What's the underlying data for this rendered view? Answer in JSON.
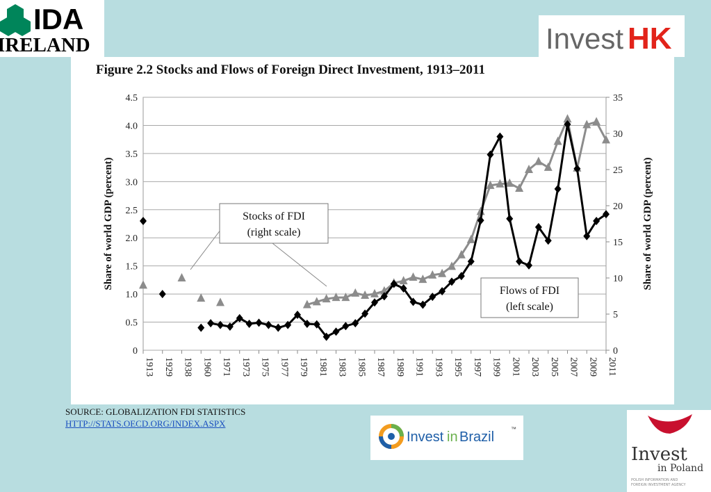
{
  "logos": {
    "ida": {
      "line1": "IDA",
      "line2": "IRELAND"
    },
    "investhk": {
      "part1": "Invest",
      "part2": "HK"
    },
    "brazil": {
      "part1": "Invest",
      "part2": "in",
      "part3": "Brazil",
      "tm": "™"
    },
    "poland": {
      "line1": "Invest",
      "line2": "in Poland",
      "line3": "POLISH INFORMATION AND",
      "line4": "FOREIGN INVESTMENT AGENCY"
    }
  },
  "source": {
    "text": "SOURCE: GLOBALIZATION FDI STATISTICS",
    "link": "HTTP://STATS.OECD.ORG/INDEX.ASPX"
  },
  "colors": {
    "background": "#b8dde0",
    "flows": "#000000",
    "stocks": "#8c8c8c",
    "ida_green": "#00855a",
    "hk_red": "#e2231a",
    "brazil_blue": "#1f5fa8",
    "poland_red": "#c8102e"
  },
  "chart_data": {
    "type": "line",
    "title": "Figure 2.2 Stocks and Flows of Foreign Direct Investment, 1913–2011",
    "ylabel": "Share of world GDP (percent)",
    "y2label": "Share of world GDP (percent)",
    "ylim": [
      0,
      4.5
    ],
    "y2lim": [
      0,
      35
    ],
    "yticks": [
      "0",
      "0.5",
      "1.0",
      "1.5",
      "2.0",
      "2.5",
      "3.0",
      "3.5",
      "4.0",
      "4.5"
    ],
    "y2ticks": [
      "0",
      "5",
      "10",
      "15",
      "20",
      "25",
      "30",
      "35"
    ],
    "x_tick_labels": [
      "1913",
      "1929",
      "1938",
      "1960",
      "1971",
      "1973",
      "1975",
      "1977",
      "1979",
      "1981",
      "1983",
      "1985",
      "1987",
      "1989",
      "1991",
      "1993",
      "1995",
      "1997",
      "1999",
      "2001",
      "2003",
      "2005",
      "2007",
      "2009",
      "2011"
    ],
    "grid": true,
    "series": [
      {
        "name": "Flows of FDI (left scale)",
        "axis": "left",
        "x": [
          "1913",
          "1929",
          "1960",
          "1970",
          "1971",
          "1972",
          "1973",
          "1974",
          "1975",
          "1976",
          "1977",
          "1978",
          "1979",
          "1980",
          "1981",
          "1982",
          "1983",
          "1984",
          "1985",
          "1986",
          "1987",
          "1988",
          "1989",
          "1990",
          "1991",
          "1992",
          "1993",
          "1994",
          "1995",
          "1996",
          "1997",
          "1998",
          "1999",
          "2000",
          "2001",
          "2002",
          "2003",
          "2004",
          "2005",
          "2006",
          "2007",
          "2008",
          "2009",
          "2010",
          "2011"
        ],
        "values": [
          2.3,
          1.0,
          0.4,
          0.48,
          0.45,
          0.42,
          0.57,
          0.47,
          0.49,
          0.45,
          0.4,
          0.45,
          0.63,
          0.47,
          0.46,
          0.24,
          0.33,
          0.43,
          0.48,
          0.65,
          0.85,
          0.96,
          1.18,
          1.1,
          0.86,
          0.81,
          0.95,
          1.05,
          1.22,
          1.32,
          1.58,
          2.31,
          3.48,
          3.8,
          2.34,
          1.58,
          1.51,
          2.19,
          1.95,
          2.87,
          4.02,
          3.23,
          2.03,
          2.3,
          2.42
        ]
      },
      {
        "name": "Stocks of FDI (right scale)",
        "axis": "right",
        "x": [
          "1913",
          "1938",
          "1960",
          "1971",
          "1980",
          "1981",
          "1982",
          "1983",
          "1984",
          "1985",
          "1986",
          "1987",
          "1988",
          "1989",
          "1990",
          "1991",
          "1992",
          "1993",
          "1994",
          "1995",
          "1996",
          "1997",
          "1998",
          "1999",
          "2000",
          "2001",
          "2002",
          "2003",
          "2004",
          "2005",
          "2006",
          "2007",
          "2008",
          "2009",
          "2010",
          "2011"
        ],
        "values": [
          9,
          10,
          7.2,
          6.6,
          6.3,
          6.7,
          7.1,
          7.3,
          7.3,
          7.9,
          7.6,
          7.8,
          8.2,
          9.3,
          9.6,
          10.1,
          9.8,
          10.4,
          10.6,
          11.6,
          13.2,
          15.3,
          19.2,
          22.8,
          23,
          23.1,
          22.4,
          25,
          26.1,
          25.3,
          28.9,
          32,
          25.2,
          31.2,
          31.6,
          29.1
        ]
      }
    ],
    "annotations": [
      {
        "line1": "Stocks of FDI",
        "line2": "(right scale)"
      },
      {
        "line1": "Flows of FDI",
        "line2": "(left scale)"
      }
    ]
  }
}
